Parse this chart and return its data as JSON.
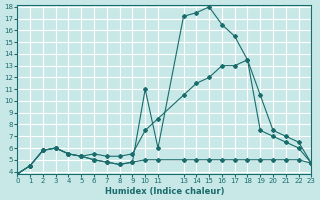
{
  "xlabel": "Humidex (Indice chaleur)",
  "bg_color": "#c8e8e8",
  "grid_color": "#ffffff",
  "line_color": "#1a6b6b",
  "xlim": [
    0,
    23
  ],
  "ylim": [
    4,
    18
  ],
  "xticks": [
    0,
    1,
    2,
    3,
    4,
    5,
    6,
    7,
    8,
    9,
    10,
    11,
    13,
    14,
    15,
    16,
    17,
    18,
    19,
    20,
    21,
    22,
    23
  ],
  "yticks": [
    4,
    5,
    6,
    7,
    8,
    9,
    10,
    11,
    12,
    13,
    14,
    15,
    16,
    17,
    18
  ],
  "line1_x": [
    0,
    1,
    2,
    3,
    4,
    5,
    6,
    7,
    8,
    9,
    10,
    11,
    13,
    14,
    15,
    16,
    17,
    18,
    19,
    20,
    21,
    22,
    23
  ],
  "line1_y": [
    3.8,
    4.5,
    5.8,
    6.0,
    5.5,
    5.3,
    5.0,
    4.8,
    4.6,
    4.8,
    5.0,
    5.0,
    5.0,
    5.0,
    5.0,
    5.0,
    5.0,
    5.0,
    5.0,
    5.0,
    5.0,
    5.0,
    4.7
  ],
  "line2_x": [
    0,
    1,
    2,
    3,
    4,
    5,
    6,
    7,
    8,
    9,
    10,
    11,
    13,
    14,
    15,
    16,
    17,
    18,
    19,
    20,
    21,
    22,
    23
  ],
  "line2_y": [
    3.8,
    4.5,
    5.8,
    6.0,
    5.5,
    5.3,
    5.0,
    4.8,
    4.6,
    4.8,
    11.0,
    6.0,
    17.2,
    17.5,
    18.0,
    16.5,
    15.5,
    13.5,
    7.5,
    7.0,
    6.5,
    6.0,
    4.7
  ],
  "line3_x": [
    0,
    1,
    2,
    3,
    4,
    5,
    6,
    7,
    8,
    9,
    10,
    11,
    13,
    14,
    15,
    16,
    17,
    18,
    19,
    20,
    21,
    22,
    23
  ],
  "line3_y": [
    3.8,
    4.5,
    5.8,
    6.0,
    5.5,
    5.3,
    5.5,
    5.3,
    5.3,
    5.5,
    7.5,
    8.5,
    10.5,
    11.5,
    12.0,
    13.0,
    13.0,
    13.5,
    10.5,
    7.5,
    7.0,
    6.5,
    4.7
  ]
}
